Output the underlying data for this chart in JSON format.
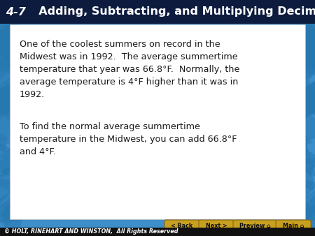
{
  "title_number": "4-7",
  "title_text": "  Adding, Subtracting, and Multiplying Decimals",
  "title_color": "#FFFFFF",
  "title_bg_color": "#0D1B3E",
  "title_fontsize": 11.5,
  "body_bg_color": "#3D8EC9",
  "card_bg_color": "#FFFFFF",
  "paragraph1": "One of the coolest summers on record in the\nMidwest was in 1992.  The average summertime\ntemperature that year was 66.8°F.  Normally, the\naverage temperature is 4°F higher than it was in\n1992.",
  "paragraph2": "To find the normal average summertime\ntemperature in the Midwest, you can add 66.8°F\nand 4°F.",
  "text_color": "#1A1A1A",
  "text_fontsize": 9.2,
  "footer_text": "© HOLT, RINEHART AND WINSTON,  All Rights Reserved",
  "footer_color": "#FFFFFF",
  "footer_fontsize": 5.8,
  "btn_back_label": "< Back",
  "btn_next_label": "Next >",
  "btn_preview_label": "Preview ⌂",
  "btn_main_label": "Main ⌂",
  "btn_color": "#C8A020",
  "btn_text_color": "#111111",
  "btn_fontsize": 5.8
}
